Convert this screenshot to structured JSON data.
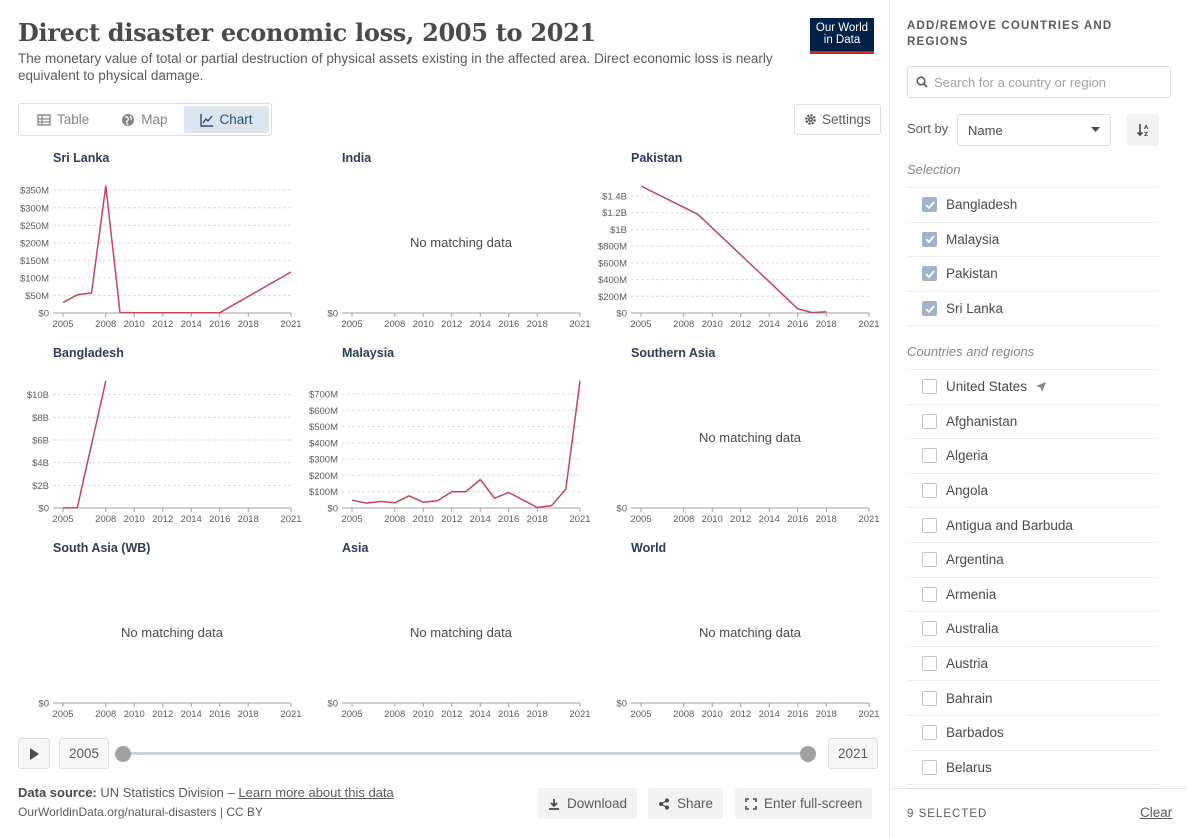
{
  "title": "Direct disaster economic loss, 2005 to 2021",
  "subtitle": "The monetary value of total or partial destruction of physical assets existing in the affected area. Direct economic loss is nearly equivalent to physical damage.",
  "logo": {
    "line1": "Our World",
    "line2": "in Data"
  },
  "tabs": [
    {
      "label": "Table",
      "icon": "table-icon",
      "active": false
    },
    {
      "label": "Map",
      "icon": "globe-icon",
      "active": false
    },
    {
      "label": "Chart",
      "icon": "line-chart-icon",
      "active": true
    }
  ],
  "settings_label": "Settings",
  "no_data_text": "No matching data",
  "chart_data": [
    {
      "type": "line",
      "title": "Sri Lanka",
      "x": [
        2005,
        2006,
        2007,
        2008,
        2009,
        2010,
        2011,
        2012,
        2013,
        2014,
        2015,
        2016,
        2021
      ],
      "y": [
        30000000,
        52000000,
        57000000,
        362000000,
        1500000,
        800000,
        800000,
        800000,
        800000,
        800000,
        800000,
        800000,
        117000000
      ],
      "yticks": [
        0,
        50000000,
        100000000,
        150000000,
        200000000,
        250000000,
        300000000,
        350000000
      ],
      "ytick_labels": [
        "$0",
        "$50M",
        "$100M",
        "$150M",
        "$200M",
        "$250M",
        "$300M",
        "$350M"
      ],
      "ylim": [
        0,
        362000000
      ],
      "xticks": [
        2005,
        2008,
        2010,
        2012,
        2014,
        2016,
        2018,
        2021
      ],
      "xlim": [
        2005,
        2021
      ]
    },
    {
      "type": "line",
      "title": "India",
      "x": [],
      "y": [],
      "yticks": [
        0
      ],
      "ytick_labels": [
        "$0"
      ],
      "ylim": [
        0,
        1
      ],
      "xticks": [
        2005,
        2008,
        2010,
        2012,
        2014,
        2016,
        2018,
        2021
      ],
      "xlim": [
        2005,
        2021
      ],
      "no_data": true
    },
    {
      "type": "line",
      "title": "Pakistan",
      "x": [
        2005,
        2009,
        2016,
        2017,
        2018
      ],
      "y": [
        1520000000,
        1180000000,
        50000000,
        5000000,
        15000000
      ],
      "yticks": [
        0,
        200000000,
        400000000,
        600000000,
        800000000,
        1000000000,
        1200000000,
        1400000000
      ],
      "ytick_labels": [
        "$0",
        "$200M",
        "$400M",
        "$600M",
        "$800M",
        "$1B",
        "$1.2B",
        "$1.4B"
      ],
      "ylim": [
        0,
        1520000000
      ],
      "xticks": [
        2005,
        2008,
        2010,
        2012,
        2014,
        2016,
        2018,
        2021
      ],
      "xlim": [
        2005,
        2021
      ]
    },
    {
      "type": "line",
      "title": "Bangladesh",
      "x": [
        2005,
        2006,
        2008
      ],
      "y": [
        0,
        30000000,
        11200000000
      ],
      "yticks": [
        0,
        2000000000,
        4000000000,
        6000000000,
        8000000000,
        10000000000
      ],
      "ytick_labels": [
        "$0",
        "$2B",
        "$4B",
        "$6B",
        "$8B",
        "$10B"
      ],
      "ylim": [
        0,
        11200000000
      ],
      "xticks": [
        2005,
        2008,
        2010,
        2012,
        2014,
        2016,
        2018,
        2021
      ],
      "xlim": [
        2005,
        2021
      ]
    },
    {
      "type": "line",
      "title": "Malaysia",
      "x": [
        2005,
        2006,
        2007,
        2008,
        2009,
        2010,
        2011,
        2012,
        2013,
        2014,
        2015,
        2016,
        2017,
        2018,
        2019,
        2020,
        2021
      ],
      "y": [
        48000000,
        30000000,
        40000000,
        32000000,
        75000000,
        35000000,
        45000000,
        100000000,
        100000000,
        175000000,
        60000000,
        95000000,
        50000000,
        3000000,
        15000000,
        115000000,
        780000000
      ],
      "yticks": [
        0,
        100000000,
        200000000,
        300000000,
        400000000,
        500000000,
        600000000,
        700000000
      ],
      "ytick_labels": [
        "$0",
        "$100M",
        "$200M",
        "$300M",
        "$400M",
        "$500M",
        "$600M",
        "$700M"
      ],
      "ylim": [
        0,
        780000000
      ],
      "xticks": [
        2005,
        2008,
        2010,
        2012,
        2014,
        2016,
        2018,
        2021
      ],
      "xlim": [
        2005,
        2021
      ]
    },
    {
      "type": "line",
      "title": "Southern Asia",
      "x": [],
      "y": [],
      "yticks": [
        0
      ],
      "ytick_labels": [
        "$0"
      ],
      "ylim": [
        0,
        1
      ],
      "xticks": [
        2005,
        2008,
        2010,
        2012,
        2014,
        2016,
        2018,
        2021
      ],
      "xlim": [
        2005,
        2021
      ],
      "no_data": true
    },
    {
      "type": "line",
      "title": "South Asia (WB)",
      "x": [],
      "y": [],
      "yticks": [
        0
      ],
      "ytick_labels": [
        "$0"
      ],
      "ylim": [
        0,
        1
      ],
      "xticks": [
        2005,
        2008,
        2010,
        2012,
        2014,
        2016,
        2018,
        2021
      ],
      "xlim": [
        2005,
        2021
      ],
      "no_data": true
    },
    {
      "type": "line",
      "title": "Asia",
      "x": [],
      "y": [],
      "yticks": [
        0
      ],
      "ytick_labels": [
        "$0"
      ],
      "ylim": [
        0,
        1
      ],
      "xticks": [
        2005,
        2008,
        2010,
        2012,
        2014,
        2016,
        2018,
        2021
      ],
      "xlim": [
        2005,
        2021
      ],
      "no_data": true
    },
    {
      "type": "line",
      "title": "World",
      "x": [],
      "y": [],
      "yticks": [
        0
      ],
      "ytick_labels": [
        "$0"
      ],
      "ylim": [
        0,
        1
      ],
      "xticks": [
        2005,
        2008,
        2010,
        2012,
        2014,
        2016,
        2018,
        2021
      ],
      "xlim": [
        2005,
        2021
      ],
      "no_data": true
    }
  ],
  "series_color": "#c0465c",
  "timeline": {
    "start_year": "2005",
    "end_year": "2021"
  },
  "footer": {
    "source_label": "Data source:",
    "source_text": "UN Statistics Division –",
    "learn_more": "Learn more about this data",
    "url_line": "OurWorldinData.org/natural-disasters | CC BY"
  },
  "actions": {
    "download": "Download",
    "share": "Share",
    "fullscreen": "Enter full-screen"
  },
  "sidebar": {
    "heading": "ADD/REMOVE COUNTRIES AND REGIONS",
    "search_placeholder": "Search for a country or region",
    "sort_by_label": "Sort by",
    "sort_value": "Name",
    "selection_label": "Selection",
    "selected": [
      "Bangladesh",
      "Malaysia",
      "Pakistan",
      "Sri Lanka"
    ],
    "countries_label": "Countries and regions",
    "countries": [
      "United States",
      "Afghanistan",
      "Algeria",
      "Angola",
      "Antigua and Barbuda",
      "Argentina",
      "Armenia",
      "Australia",
      "Austria",
      "Bahrain",
      "Barbados",
      "Belarus"
    ],
    "selected_count": "9 SELECTED",
    "clear_label": "Clear"
  }
}
